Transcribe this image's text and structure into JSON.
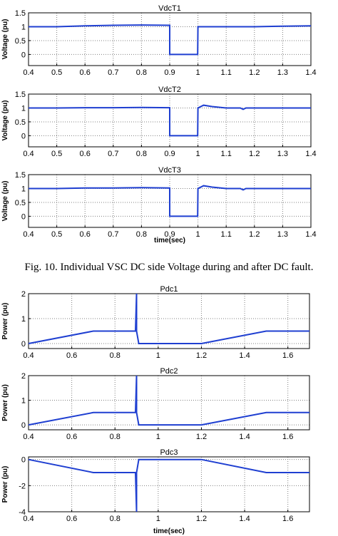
{
  "caption": "Fig. 10. Individual VSC DC side Voltage during and after DC fault.",
  "colors": {
    "line": "#1f3fd1",
    "grid": "#808080",
    "axes": "#000000"
  },
  "chart_data": [
    {
      "type": "line",
      "title": "VdcT1",
      "ylabel": "Voltage (pu)",
      "xlabel": "",
      "xlim": [
        0.4,
        1.4
      ],
      "ylim": [
        -0.4,
        1.5
      ],
      "xticks": [
        "0.4",
        "0.5",
        "0.6",
        "0.7",
        "0.8",
        "0.9",
        "1",
        "1.1",
        "1.2",
        "1.3",
        "1.4"
      ],
      "yticks": [
        "0",
        "0.5",
        "1",
        "1.5"
      ],
      "grid": true,
      "series": [
        {
          "x": [
            0.4,
            0.5,
            0.6,
            0.7,
            0.8,
            0.9,
            0.9,
            0.999,
            1.0,
            1.1,
            1.2,
            1.3,
            1.4
          ],
          "y": [
            1.0,
            1.0,
            1.03,
            1.05,
            1.06,
            1.05,
            0.0,
            0.0,
            1.0,
            1.0,
            1.0,
            1.02,
            1.03
          ]
        }
      ]
    },
    {
      "type": "line",
      "title": "VdcT2",
      "ylabel": "Voltage (pu)",
      "xlabel": "",
      "xlim": [
        0.4,
        1.4
      ],
      "ylim": [
        -0.4,
        1.5
      ],
      "xticks": [
        "0.4",
        "0.5",
        "0.6",
        "0.7",
        "0.8",
        "0.9",
        "1",
        "1.1",
        "1.2",
        "1.3",
        "1.4"
      ],
      "yticks": [
        "0",
        "0.5",
        "1",
        "1.5"
      ],
      "grid": true,
      "series": [
        {
          "x": [
            0.4,
            0.5,
            0.6,
            0.7,
            0.8,
            0.9,
            0.9,
            0.999,
            1.0,
            1.02,
            1.05,
            1.1,
            1.15,
            1.16,
            1.17,
            1.2,
            1.3,
            1.4
          ],
          "y": [
            1.0,
            1.0,
            1.01,
            1.01,
            1.02,
            1.01,
            0.0,
            0.0,
            1.0,
            1.1,
            1.05,
            1.0,
            1.0,
            0.95,
            1.0,
            1.0,
            1.0,
            1.0
          ]
        }
      ]
    },
    {
      "type": "line",
      "title": "VdcT3",
      "ylabel": "Voltage (pu)",
      "xlabel": "time(sec)",
      "xlim": [
        0.4,
        1.4
      ],
      "ylim": [
        -0.4,
        1.5
      ],
      "xticks": [
        "0.4",
        "0.5",
        "0.6",
        "0.7",
        "0.8",
        "0.9",
        "1",
        "1.1",
        "1.2",
        "1.3",
        "1.4"
      ],
      "yticks": [
        "0",
        "0.5",
        "1",
        "1.5"
      ],
      "grid": true,
      "series": [
        {
          "x": [
            0.4,
            0.5,
            0.6,
            0.7,
            0.8,
            0.9,
            0.9,
            0.999,
            1.0,
            1.02,
            1.05,
            1.1,
            1.15,
            1.16,
            1.17,
            1.2,
            1.3,
            1.4
          ],
          "y": [
            1.0,
            1.0,
            1.02,
            1.02,
            1.03,
            1.02,
            0.0,
            0.0,
            1.0,
            1.1,
            1.05,
            1.0,
            1.0,
            0.95,
            1.0,
            1.0,
            1.0,
            1.0
          ]
        }
      ]
    },
    {
      "type": "line",
      "title": "Pdc1",
      "ylabel": "Power (pu)",
      "xlabel": "",
      "xlim": [
        0.4,
        1.7
      ],
      "ylim": [
        -0.2,
        2
      ],
      "xticks": [
        "0.4",
        "0.6",
        "0.8",
        "1",
        "1.2",
        "1.4",
        "1.6"
      ],
      "yticks": [
        "0",
        "1",
        "2"
      ],
      "grid": true,
      "series": [
        {
          "x": [
            0.4,
            0.7,
            0.895,
            0.9,
            0.9,
            0.91,
            1.2,
            1.5,
            1.7
          ],
          "y": [
            0.0,
            0.5,
            0.5,
            2.0,
            0.5,
            0.0,
            0.0,
            0.5,
            0.5
          ]
        }
      ]
    },
    {
      "type": "line",
      "title": "Pdc2",
      "ylabel": "Power (pu)",
      "xlabel": "",
      "xlim": [
        0.4,
        1.7
      ],
      "ylim": [
        -0.2,
        2
      ],
      "xticks": [
        "0.4",
        "0.6",
        "0.8",
        "1",
        "1.2",
        "1.4",
        "1.6"
      ],
      "yticks": [
        "0",
        "1",
        "2"
      ],
      "grid": true,
      "series": [
        {
          "x": [
            0.4,
            0.7,
            0.895,
            0.9,
            0.9,
            0.91,
            1.2,
            1.5,
            1.7
          ],
          "y": [
            0.0,
            0.5,
            0.5,
            2.0,
            0.5,
            0.0,
            0.0,
            0.5,
            0.5
          ]
        }
      ]
    },
    {
      "type": "line",
      "title": "Pdc3",
      "ylabel": "Power (pu)",
      "xlabel": "time(sec)",
      "xlim": [
        0.4,
        1.7
      ],
      "ylim": [
        -4,
        0.2
      ],
      "xticks": [
        "0.4",
        "0.6",
        "0.8",
        "1",
        "1.2",
        "1.4",
        "1.6"
      ],
      "yticks": [
        "0",
        "-2",
        "-4"
      ],
      "grid": true,
      "series": [
        {
          "x": [
            0.4,
            0.7,
            0.895,
            0.9,
            0.9,
            0.91,
            1.2,
            1.5,
            1.7
          ],
          "y": [
            0.0,
            -1.0,
            -1.0,
            -4.0,
            -1.0,
            0.0,
            0.0,
            -1.0,
            -1.0
          ]
        }
      ]
    }
  ]
}
